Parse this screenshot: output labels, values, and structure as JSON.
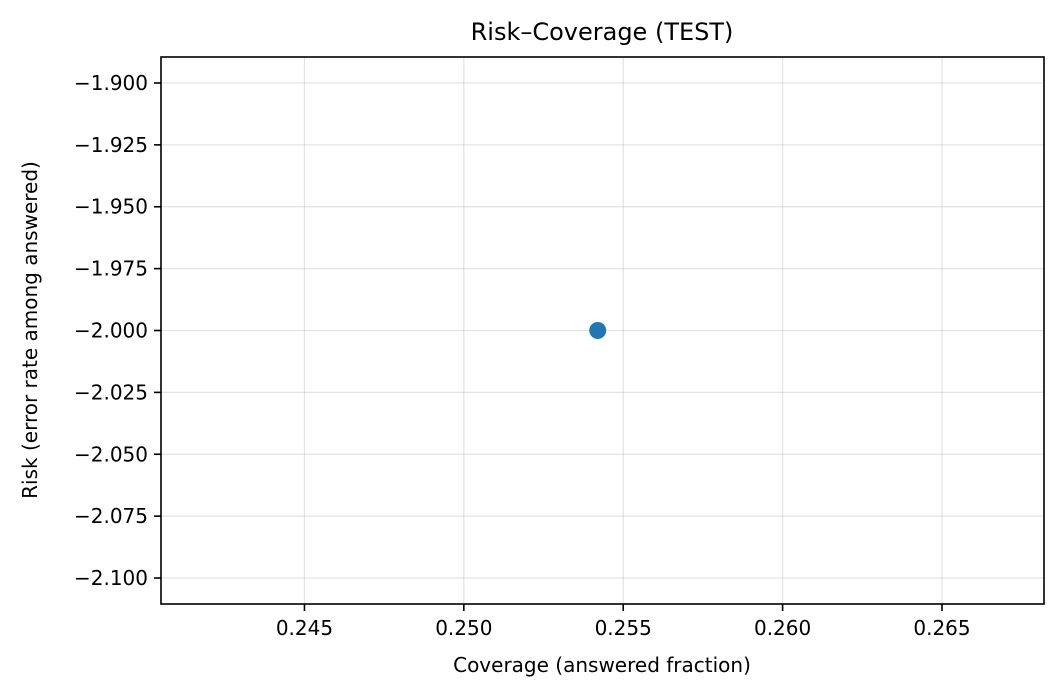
{
  "chart_data": {
    "type": "scatter",
    "title": "Risk–Coverage (TEST)",
    "xlabel": "Coverage (answered fraction)",
    "ylabel": "Risk (error rate among answered)",
    "xlim": [
      0.2405,
      0.2682
    ],
    "ylim": [
      -2.1105,
      -1.8895
    ],
    "xticks": [
      0.245,
      0.25,
      0.255,
      0.26,
      0.265
    ],
    "xtick_labels": [
      "0.245",
      "0.250",
      "0.255",
      "0.260",
      "0.265"
    ],
    "yticks": [
      -1.9,
      -1.925,
      -1.95,
      -1.975,
      -2.0,
      -2.025,
      -2.05,
      -2.075,
      -2.1
    ],
    "ytick_labels": [
      "−1.900",
      "−1.925",
      "−1.950",
      "−1.975",
      "−2.000",
      "−2.025",
      "−2.050",
      "−2.075",
      "−2.100"
    ],
    "grid": true,
    "points": [
      {
        "x": 0.2542,
        "y": -2.0
      }
    ],
    "marker_color": "#1f77b4"
  }
}
